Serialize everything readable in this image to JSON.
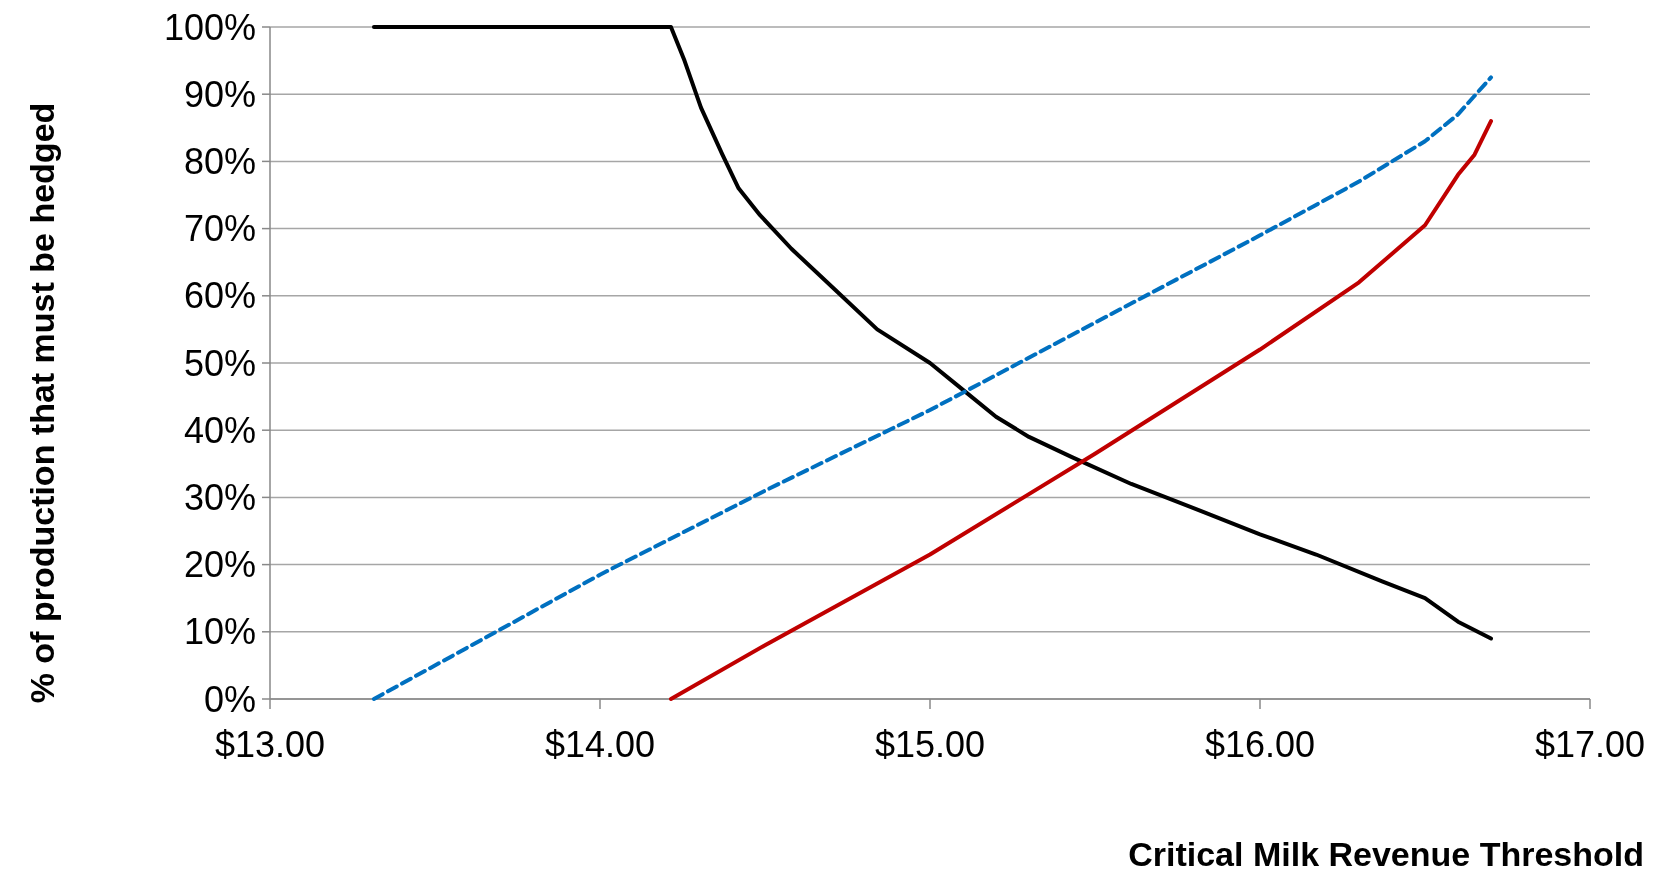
{
  "chart_data": {
    "type": "line",
    "xlabel": "Critical Milk Revenue Threshold",
    "ylabel": "% of production that must be hedged",
    "xlim": [
      13,
      17
    ],
    "xticks": [
      {
        "value": 13,
        "label": "$13.00"
      },
      {
        "value": 14,
        "label": "$14.00"
      },
      {
        "value": 15,
        "label": "$15.00"
      },
      {
        "value": 16,
        "label": "$16.00"
      },
      {
        "value": 17,
        "label": "$17.00"
      }
    ],
    "ylim": [
      0,
      100
    ],
    "yticks": [
      {
        "value": 0,
        "label": "0%"
      },
      {
        "value": 10,
        "label": "10%"
      },
      {
        "value": 20,
        "label": "20%"
      },
      {
        "value": 30,
        "label": "30%"
      },
      {
        "value": 40,
        "label": "40%"
      },
      {
        "value": 50,
        "label": "50%"
      },
      {
        "value": 60,
        "label": "60%"
      },
      {
        "value": 70,
        "label": "70%"
      },
      {
        "value": 80,
        "label": "80%"
      },
      {
        "value": 90,
        "label": "90%"
      },
      {
        "value": 100,
        "label": "100%"
      }
    ],
    "grid": "y",
    "marker": "none",
    "series": [
      {
        "color": "#000000",
        "line_style": "solid",
        "x": [
          13.315,
          14.215,
          14.256,
          14.306,
          14.371,
          14.42,
          14.485,
          14.58,
          14.71,
          14.84,
          15.0,
          15.1,
          15.2,
          15.3,
          15.43,
          15.61,
          15.82,
          16.0,
          16.17,
          16.37,
          16.5,
          16.6,
          16.7
        ],
        "values": [
          100,
          100,
          95,
          88,
          81,
          76,
          72,
          67,
          61,
          55,
          50,
          46,
          42,
          39,
          36,
          32,
          28,
          24.5,
          21.5,
          17.5,
          15,
          11.5,
          9
        ]
      },
      {
        "color": "#0070c0",
        "line_style": "dashed",
        "x": [
          13.315,
          14.0,
          14.5,
          15.0,
          15.5,
          16.0,
          16.3,
          16.5,
          16.6,
          16.7
        ],
        "values": [
          0,
          18.5,
          31,
          43,
          56,
          69,
          77,
          83,
          87,
          92.5
        ]
      },
      {
        "color": "#c00000",
        "line_style": "solid",
        "x": [
          14.215,
          14.5,
          15.0,
          15.5,
          16.0,
          16.3,
          16.5,
          16.6,
          16.65,
          16.7
        ],
        "values": [
          0,
          8,
          21.5,
          36.5,
          52,
          62,
          70.5,
          78,
          81,
          86
        ]
      }
    ]
  }
}
